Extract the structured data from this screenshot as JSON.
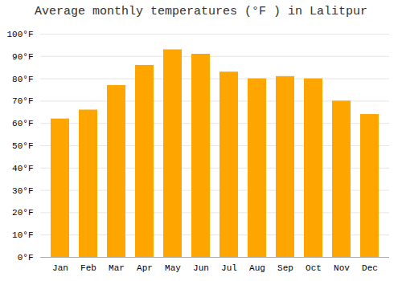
{
  "chart_data": {
    "type": "bar",
    "title": "Average monthly temperatures (°F ) in Lalitpur",
    "categories": [
      "Jan",
      "Feb",
      "Mar",
      "Apr",
      "May",
      "Jun",
      "Jul",
      "Aug",
      "Sep",
      "Oct",
      "Nov",
      "Dec"
    ],
    "values": [
      62,
      66,
      77,
      86,
      93,
      91,
      83,
      80,
      81,
      80,
      70,
      64
    ],
    "color": "#FFA500",
    "ylim": [
      0,
      100
    ],
    "yticks": [
      {
        "value": 0,
        "label": "0°F"
      },
      {
        "value": 10,
        "label": "10°F"
      },
      {
        "value": 20,
        "label": "20°F"
      },
      {
        "value": 30,
        "label": "30°F"
      },
      {
        "value": 40,
        "label": "40°F"
      },
      {
        "value": 50,
        "label": "50°F"
      },
      {
        "value": 60,
        "label": "60°F"
      },
      {
        "value": 70,
        "label": "70°F"
      },
      {
        "value": 80,
        "label": "80°F"
      },
      {
        "value": 90,
        "label": "90°F"
      },
      {
        "value": 100,
        "label": "100°F"
      }
    ],
    "grid": true
  }
}
